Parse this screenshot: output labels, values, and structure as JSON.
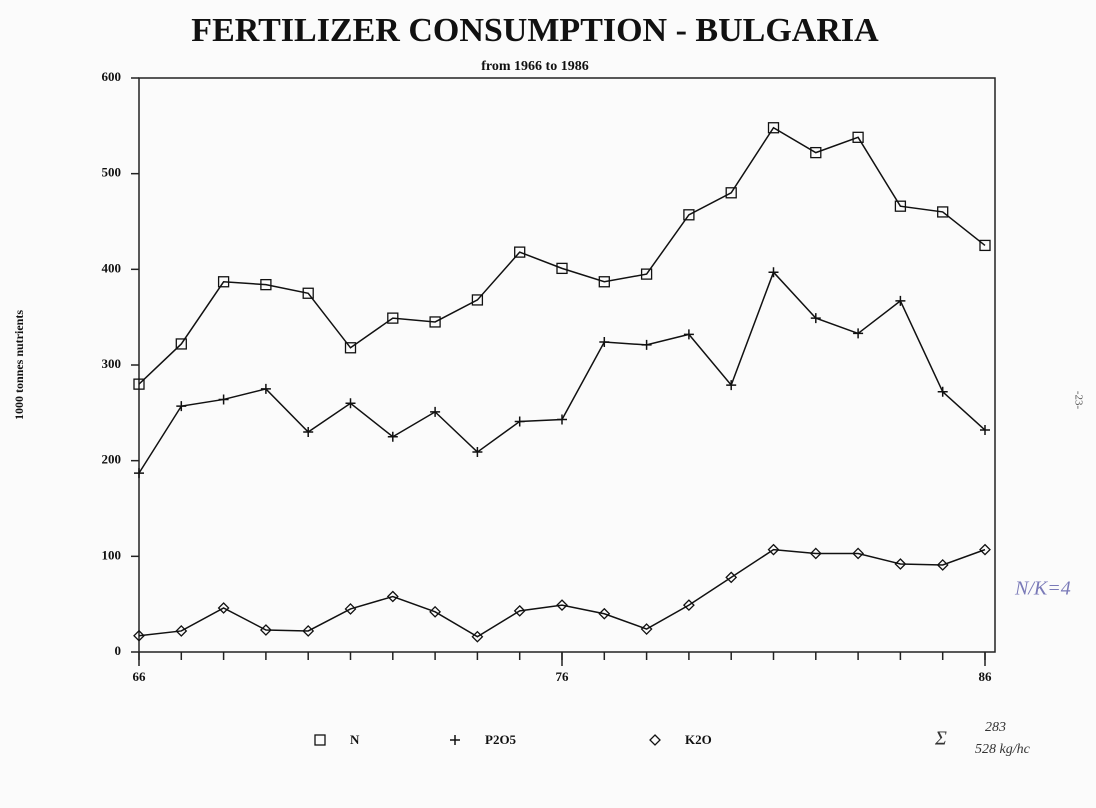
{
  "chart_data": {
    "type": "line",
    "title": "FERTILIZER CONSUMPTION  -  BULGARIA",
    "subtitle": "from 1966 to 1986",
    "y_label": "1000 tonnes nutrients",
    "x": [
      66,
      67,
      68,
      69,
      70,
      71,
      72,
      73,
      74,
      75,
      76,
      77,
      78,
      79,
      80,
      81,
      82,
      83,
      84,
      85,
      86
    ],
    "series": [
      {
        "name": "N",
        "color": "#111111",
        "marker": "square",
        "values": [
          280,
          322,
          387,
          384,
          375,
          318,
          349,
          345,
          368,
          418,
          401,
          387,
          395,
          457,
          480,
          548,
          522,
          538,
          466,
          460,
          425
        ]
      },
      {
        "name": "P2O5",
        "color": "#111111",
        "marker": "plus",
        "values": [
          187,
          257,
          264,
          275,
          230,
          260,
          225,
          251,
          209,
          241,
          243,
          324,
          321,
          332,
          279,
          397,
          349,
          333,
          367,
          272,
          232
        ]
      },
      {
        "name": "K2O",
        "color": "#111111",
        "marker": "diamond",
        "values": [
          17,
          22,
          46,
          23,
          22,
          45,
          58,
          42,
          16,
          43,
          49,
          40,
          24,
          49,
          78,
          107,
          103,
          103,
          92,
          91,
          107
        ]
      }
    ],
    "xlim": [
      66,
      86
    ],
    "xticks": [
      66,
      76,
      86
    ],
    "ylim": [
      0,
      600
    ],
    "yticks": [
      0,
      100,
      200,
      300,
      400,
      500,
      600
    ],
    "grid": false,
    "annotations": [
      "-23-",
      "N/K=4",
      "Σ",
      "283",
      "528 kg/hc"
    ]
  }
}
